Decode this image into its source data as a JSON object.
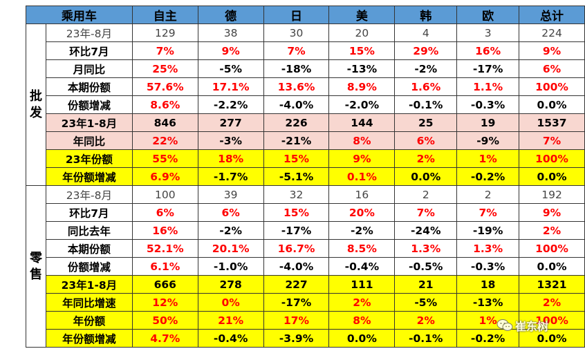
{
  "columns": [
    "乘用车",
    "自主",
    "德",
    "日",
    "美",
    "韩",
    "欧",
    "总计"
  ],
  "groups": [
    {
      "label": "批发",
      "rows": [
        {
          "label": "23年-8月",
          "style": "plain",
          "cells": [
            {
              "v": "129",
              "c": "blk"
            },
            {
              "v": "38",
              "c": "blk"
            },
            {
              "v": "30",
              "c": "blk"
            },
            {
              "v": "20",
              "c": "blk"
            },
            {
              "v": "4",
              "c": "blk"
            },
            {
              "v": "3",
              "c": "blk"
            },
            {
              "v": "224",
              "c": "blk"
            }
          ]
        },
        {
          "label": "环比7月",
          "style": "",
          "cells": [
            {
              "v": "7%",
              "c": "red"
            },
            {
              "v": "9%",
              "c": "red"
            },
            {
              "v": "7%",
              "c": "red"
            },
            {
              "v": "15%",
              "c": "red"
            },
            {
              "v": "29%",
              "c": "red"
            },
            {
              "v": "16%",
              "c": "red"
            },
            {
              "v": "9%",
              "c": "red"
            }
          ]
        },
        {
          "label": "月同比",
          "style": "",
          "cells": [
            {
              "v": "25%",
              "c": "red"
            },
            {
              "v": "-5%",
              "c": "blk"
            },
            {
              "v": "-18%",
              "c": "blk"
            },
            {
              "v": "-13%",
              "c": "blk"
            },
            {
              "v": "-2%",
              "c": "blk"
            },
            {
              "v": "-17%",
              "c": "blk"
            },
            {
              "v": "6%",
              "c": "red"
            }
          ]
        },
        {
          "label": "本期份额",
          "style": "",
          "cells": [
            {
              "v": "57.6%",
              "c": "red"
            },
            {
              "v": "17.1%",
              "c": "red"
            },
            {
              "v": "13.6%",
              "c": "red"
            },
            {
              "v": "8.9%",
              "c": "red"
            },
            {
              "v": "1.6%",
              "c": "red"
            },
            {
              "v": "1.1%",
              "c": "red"
            },
            {
              "v": "100%",
              "c": "red"
            }
          ]
        },
        {
          "label": "份额增减",
          "style": "",
          "cells": [
            {
              "v": "8.6%",
              "c": "red"
            },
            {
              "v": "-2.2%",
              "c": "blk"
            },
            {
              "v": "-4.0%",
              "c": "blk"
            },
            {
              "v": "-2.0%",
              "c": "blk"
            },
            {
              "v": "-0.1%",
              "c": "blk"
            },
            {
              "v": "-0.3%",
              "c": "blk"
            },
            {
              "v": "0.0%",
              "c": "blk"
            }
          ]
        },
        {
          "label": "23年1-8月",
          "style": "pink",
          "cells": [
            {
              "v": "846",
              "c": "blk"
            },
            {
              "v": "277",
              "c": "blk"
            },
            {
              "v": "226",
              "c": "blk"
            },
            {
              "v": "144",
              "c": "blk"
            },
            {
              "v": "25",
              "c": "blk"
            },
            {
              "v": "19",
              "c": "blk"
            },
            {
              "v": "1537",
              "c": "blk"
            }
          ]
        },
        {
          "label": "年同比",
          "style": "pink",
          "cells": [
            {
              "v": "22%",
              "c": "red"
            },
            {
              "v": "-3%",
              "c": "blk"
            },
            {
              "v": "-21%",
              "c": "blk"
            },
            {
              "v": "8%",
              "c": "red"
            },
            {
              "v": "6%",
              "c": "red"
            },
            {
              "v": "-9%",
              "c": "blk"
            },
            {
              "v": "7%",
              "c": "red"
            }
          ]
        },
        {
          "label": "23年份额",
          "style": "yellow",
          "cells": [
            {
              "v": "55%",
              "c": "red"
            },
            {
              "v": "18%",
              "c": "red"
            },
            {
              "v": "15%",
              "c": "red"
            },
            {
              "v": "9%",
              "c": "red"
            },
            {
              "v": "2%",
              "c": "red"
            },
            {
              "v": "1%",
              "c": "red"
            },
            {
              "v": "100%",
              "c": "red"
            }
          ]
        },
        {
          "label": "年份额增减",
          "style": "yellow",
          "cells": [
            {
              "v": "6.9%",
              "c": "red"
            },
            {
              "v": "-1.7%",
              "c": "blk"
            },
            {
              "v": "-5.1%",
              "c": "blk"
            },
            {
              "v": "0.1%",
              "c": "red"
            },
            {
              "v": "0.0%",
              "c": "blk"
            },
            {
              "v": "-0.2%",
              "c": "blk"
            },
            {
              "v": "0.0%",
              "c": "blk"
            }
          ]
        }
      ]
    },
    {
      "label": "零售",
      "rows": [
        {
          "label": "23年-8月",
          "style": "plain",
          "cells": [
            {
              "v": "100",
              "c": "blk"
            },
            {
              "v": "39",
              "c": "blk"
            },
            {
              "v": "32",
              "c": "blk"
            },
            {
              "v": "16",
              "c": "blk"
            },
            {
              "v": "2",
              "c": "blk"
            },
            {
              "v": "2",
              "c": "blk"
            },
            {
              "v": "192",
              "c": "blk"
            }
          ]
        },
        {
          "label": "环比7月",
          "style": "",
          "cells": [
            {
              "v": "6%",
              "c": "red"
            },
            {
              "v": "6%",
              "c": "red"
            },
            {
              "v": "15%",
              "c": "red"
            },
            {
              "v": "20%",
              "c": "red"
            },
            {
              "v": "7%",
              "c": "red"
            },
            {
              "v": "7%",
              "c": "red"
            },
            {
              "v": "9%",
              "c": "red"
            }
          ]
        },
        {
          "label": "同比去年",
          "style": "",
          "cells": [
            {
              "v": "16%",
              "c": "red"
            },
            {
              "v": "-2%",
              "c": "blk"
            },
            {
              "v": "-17%",
              "c": "blk"
            },
            {
              "v": "-2%",
              "c": "blk"
            },
            {
              "v": "-24%",
              "c": "blk"
            },
            {
              "v": "-19%",
              "c": "blk"
            },
            {
              "v": "2%",
              "c": "red"
            }
          ]
        },
        {
          "label": "本期份额",
          "style": "",
          "cells": [
            {
              "v": "52.1%",
              "c": "red"
            },
            {
              "v": "20.1%",
              "c": "red"
            },
            {
              "v": "16.7%",
              "c": "red"
            },
            {
              "v": "8.5%",
              "c": "red"
            },
            {
              "v": "1.3%",
              "c": "red"
            },
            {
              "v": "1.3%",
              "c": "red"
            },
            {
              "v": "100%",
              "c": "red"
            }
          ]
        },
        {
          "label": "份额增减",
          "style": "",
          "cells": [
            {
              "v": "6.1%",
              "c": "red"
            },
            {
              "v": "-1.0%",
              "c": "blk"
            },
            {
              "v": "-4.0%",
              "c": "blk"
            },
            {
              "v": "-0.4%",
              "c": "blk"
            },
            {
              "v": "-0.5%",
              "c": "blk"
            },
            {
              "v": "-0.3%",
              "c": "blk"
            },
            {
              "v": "0.0%",
              "c": "blk"
            }
          ]
        },
        {
          "label": "23年1-8月",
          "style": "yellow",
          "cells": [
            {
              "v": "666",
              "c": "blk"
            },
            {
              "v": "278",
              "c": "blk"
            },
            {
              "v": "227",
              "c": "blk"
            },
            {
              "v": "111",
              "c": "blk"
            },
            {
              "v": "21",
              "c": "blk"
            },
            {
              "v": "18",
              "c": "blk"
            },
            {
              "v": "1321",
              "c": "blk"
            }
          ]
        },
        {
          "label": "年同比增速",
          "style": "yellow",
          "cells": [
            {
              "v": "12%",
              "c": "red"
            },
            {
              "v": "0%",
              "c": "red"
            },
            {
              "v": "-17%",
              "c": "blk"
            },
            {
              "v": "2%",
              "c": "red"
            },
            {
              "v": "-5%",
              "c": "blk"
            },
            {
              "v": "-13%",
              "c": "blk"
            },
            {
              "v": "2%",
              "c": "red"
            }
          ]
        },
        {
          "label": "年份额",
          "style": "yellow",
          "cells": [
            {
              "v": "50%",
              "c": "red"
            },
            {
              "v": "21%",
              "c": "red"
            },
            {
              "v": "17%",
              "c": "red"
            },
            {
              "v": "8%",
              "c": "red"
            },
            {
              "v": "2%",
              "c": "red"
            },
            {
              "v": "1%",
              "c": "red"
            },
            {
              "v": "100%",
              "c": "red"
            }
          ]
        },
        {
          "label": "年份额增减",
          "style": "yellow",
          "cells": [
            {
              "v": "4.7%",
              "c": "red"
            },
            {
              "v": "-0.4%",
              "c": "blk"
            },
            {
              "v": "-3.9%",
              "c": "blk"
            },
            {
              "v": "0.0%",
              "c": "blk"
            },
            {
              "v": "-0.1%",
              "c": "blk"
            },
            {
              "v": "-0.2%",
              "c": "blk"
            },
            {
              "v": "0.0%",
              "c": "blk"
            }
          ]
        }
      ]
    }
  ],
  "watermark": {
    "text": "崔东树",
    "icon": "wechat-icon"
  }
}
